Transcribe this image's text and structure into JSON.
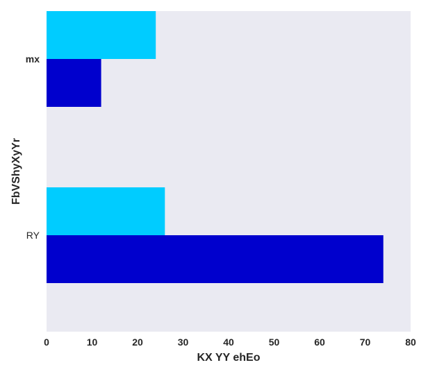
{
  "chart_data": {
    "type": "bar",
    "orientation": "horizontal",
    "categories": [
      "mx",
      "RY"
    ],
    "series": [
      {
        "values": [
          24,
          26
        ],
        "color": "#00ccff"
      },
      {
        "values": [
          12,
          74
        ],
        "color": "#0000cd"
      }
    ],
    "title": "",
    "xlabel": "KX YY ehEo",
    "ylabel": "FbVShyXyYr",
    "xlim": [
      0,
      80
    ],
    "xticks": [
      0,
      10,
      20,
      30,
      40,
      50,
      60,
      70,
      80
    ],
    "grid": false,
    "legend": "none",
    "background_color": "#eaeaf2"
  }
}
